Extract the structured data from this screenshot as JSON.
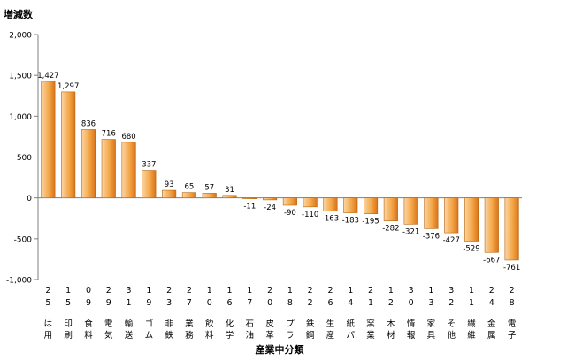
{
  "chart_data": {
    "type": "bar",
    "ylabel": "増減数",
    "xlabel": "産業中分類",
    "ylim": [
      -1000,
      2000
    ],
    "yticks": [
      2000,
      1500,
      1000,
      500,
      0,
      -500,
      -1000
    ],
    "ytick_labels": [
      "2,000",
      "1,500",
      "1,000",
      "500",
      "0",
      "-500",
      "-1,000"
    ],
    "grid": false,
    "categories": [
      {
        "code": [
          "2",
          "5"
        ],
        "name": [
          "は",
          "用"
        ]
      },
      {
        "code": [
          "1",
          "5"
        ],
        "name": [
          "印",
          "刷"
        ]
      },
      {
        "code": [
          "0",
          "9"
        ],
        "name": [
          "食",
          "料"
        ]
      },
      {
        "code": [
          "2",
          "9"
        ],
        "name": [
          "電",
          "気"
        ]
      },
      {
        "code": [
          "3",
          "1"
        ],
        "name": [
          "輸",
          "送"
        ]
      },
      {
        "code": [
          "1",
          "9"
        ],
        "name": [
          "ゴ",
          "ム"
        ]
      },
      {
        "code": [
          "2",
          "3"
        ],
        "name": [
          "非",
          "鉄"
        ]
      },
      {
        "code": [
          "2",
          "7"
        ],
        "name": [
          "業",
          "務"
        ]
      },
      {
        "code": [
          "1",
          "0"
        ],
        "name": [
          "飲",
          "料"
        ]
      },
      {
        "code": [
          "1",
          "6"
        ],
        "name": [
          "化",
          "学"
        ]
      },
      {
        "code": [
          "1",
          "7"
        ],
        "name": [
          "石",
          "油"
        ]
      },
      {
        "code": [
          "2",
          "0"
        ],
        "name": [
          "皮",
          "革"
        ]
      },
      {
        "code": [
          "1",
          "8"
        ],
        "name": [
          "プ",
          "ラ"
        ]
      },
      {
        "code": [
          "2",
          "2"
        ],
        "name": [
          "鉄",
          "鋼"
        ]
      },
      {
        "code": [
          "2",
          "6"
        ],
        "name": [
          "生",
          "産"
        ]
      },
      {
        "code": [
          "1",
          "4"
        ],
        "name": [
          "紙",
          "パ"
        ]
      },
      {
        "code": [
          "2",
          "1"
        ],
        "name": [
          "窯",
          "業"
        ]
      },
      {
        "code": [
          "1",
          "2"
        ],
        "name": [
          "木",
          "材"
        ]
      },
      {
        "code": [
          "3",
          "0"
        ],
        "name": [
          "情",
          "報"
        ]
      },
      {
        "code": [
          "1",
          "3"
        ],
        "name": [
          "家",
          "具"
        ]
      },
      {
        "code": [
          "3",
          "2"
        ],
        "name": [
          "そ",
          "他"
        ]
      },
      {
        "code": [
          "1",
          "1"
        ],
        "name": [
          "繊",
          "維"
        ]
      },
      {
        "code": [
          "2",
          "4"
        ],
        "name": [
          "金",
          "属"
        ]
      },
      {
        "code": [
          "2",
          "8"
        ],
        "name": [
          "電",
          "子"
        ]
      }
    ],
    "values": [
      1427,
      1297,
      836,
      716,
      680,
      337,
      93,
      65,
      57,
      31,
      -11,
      -24,
      -90,
      -110,
      -163,
      -183,
      -195,
      -282,
      -321,
      -376,
      -427,
      -529,
      -667,
      -761
    ],
    "value_labels": [
      "1,427",
      "1,297",
      "836",
      "716",
      "680",
      "337",
      "93",
      "65",
      "57",
      "31",
      "-11",
      "-24",
      "-90",
      "-110",
      "-163",
      "-183",
      "-195",
      "-282",
      "-321",
      "-376",
      "-427",
      "-529",
      "-667",
      "-761"
    ],
    "bar_colors": {
      "light": "#fbd5a4",
      "mid": "#f4a748",
      "dark": "#d9731a",
      "edge": "#b8650f"
    }
  }
}
